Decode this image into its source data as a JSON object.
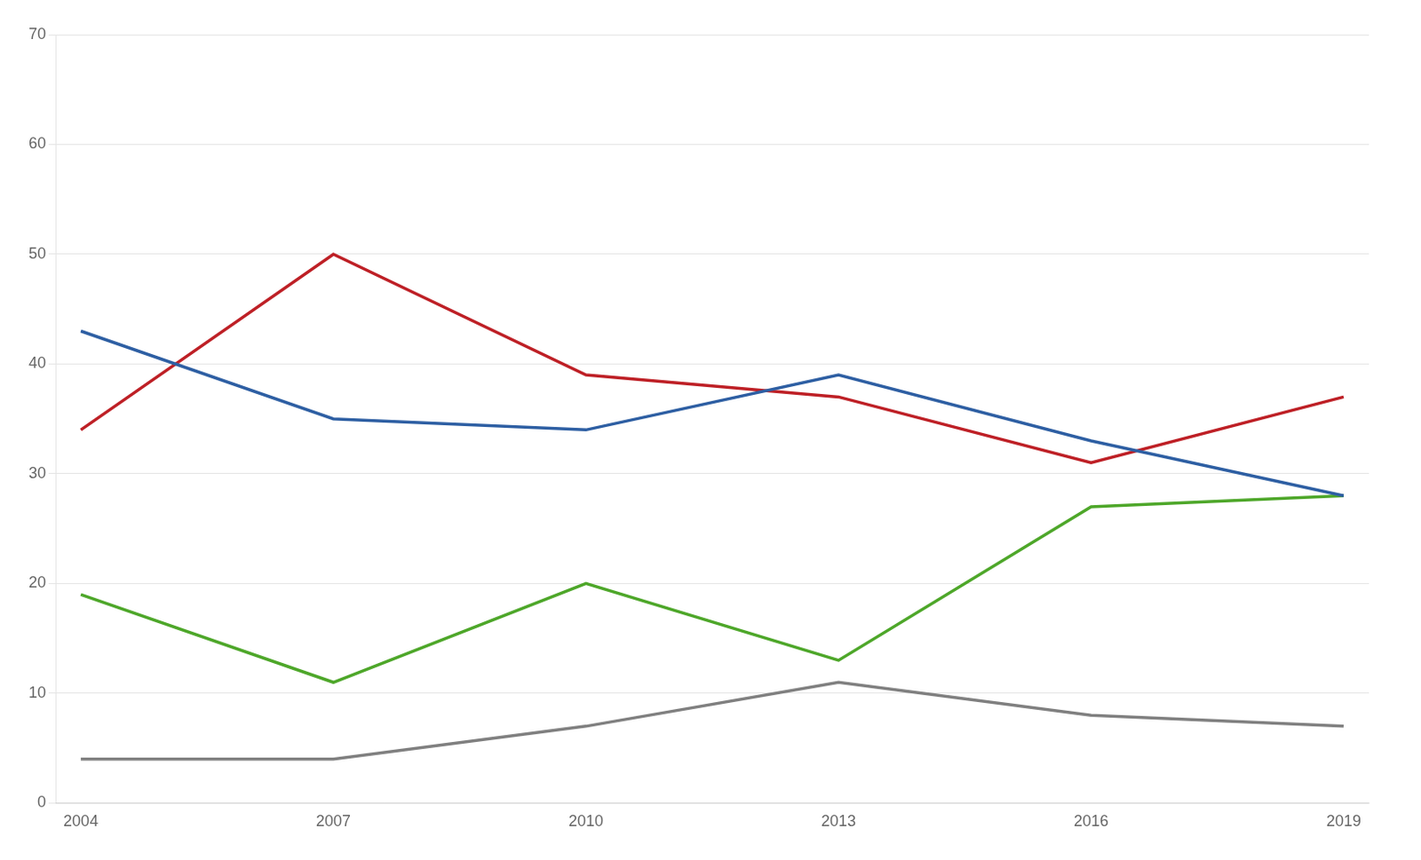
{
  "chart_data": {
    "type": "line",
    "x": [
      2004,
      2007,
      2010,
      2013,
      2016,
      2019
    ],
    "series": [
      {
        "color": "#2e5fa3",
        "values": [
          43,
          35,
          34,
          39,
          33,
          28
        ]
      },
      {
        "color": "#be2026",
        "values": [
          34,
          50,
          39,
          37,
          31,
          37
        ]
      },
      {
        "color": "#4ea72a",
        "values": [
          19,
          11,
          20,
          13,
          27,
          28
        ]
      },
      {
        "color": "#808080",
        "values": [
          4,
          4,
          7,
          11,
          8,
          7
        ]
      }
    ],
    "xlim": [
      2003.7,
      2019.3
    ],
    "xticks": [
      2004,
      2007,
      2010,
      2013,
      2016,
      2019
    ],
    "ylim": [
      0,
      70
    ],
    "yticks": [
      0,
      10,
      20,
      30,
      40,
      50,
      60,
      70
    ],
    "grid": true
  }
}
